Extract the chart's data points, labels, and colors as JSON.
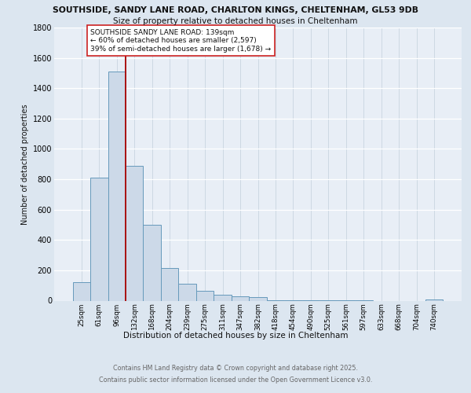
{
  "title_line1": "SOUTHSIDE, SANDY LANE ROAD, CHARLTON KINGS, CHELTENHAM, GL53 9DB",
  "title_line2": "Size of property relative to detached houses in Cheltenham",
  "xlabel": "Distribution of detached houses by size in Cheltenham",
  "ylabel": "Number of detached properties",
  "categories": [
    "25sqm",
    "61sqm",
    "96sqm",
    "132sqm",
    "168sqm",
    "204sqm",
    "239sqm",
    "275sqm",
    "311sqm",
    "347sqm",
    "382sqm",
    "418sqm",
    "454sqm",
    "490sqm",
    "525sqm",
    "561sqm",
    "597sqm",
    "633sqm",
    "668sqm",
    "704sqm",
    "740sqm"
  ],
  "values": [
    120,
    810,
    1510,
    890,
    500,
    215,
    110,
    65,
    40,
    30,
    22,
    5,
    3,
    2,
    2,
    1,
    1,
    0,
    0,
    0,
    8
  ],
  "bar_color": "#ccd9e8",
  "bar_edge_color": "#6699bb",
  "vline_x": 2.5,
  "vline_color": "#aa1111",
  "annotation_text": "SOUTHSIDE SANDY LANE ROAD: 139sqm\n← 60% of detached houses are smaller (2,597)\n39% of semi-detached houses are larger (1,678) →",
  "annotation_box_color": "#ffffff",
  "annotation_box_edge": "#cc2222",
  "ylim": [
    0,
    1800
  ],
  "yticks": [
    0,
    200,
    400,
    600,
    800,
    1000,
    1200,
    1400,
    1600,
    1800
  ],
  "footer_line1": "Contains HM Land Registry data © Crown copyright and database right 2025.",
  "footer_line2": "Contains public sector information licensed under the Open Government Licence v3.0.",
  "bg_color": "#dce6f0",
  "plot_bg_color": "#e8eef6",
  "grid_color": "#c8d4e0"
}
